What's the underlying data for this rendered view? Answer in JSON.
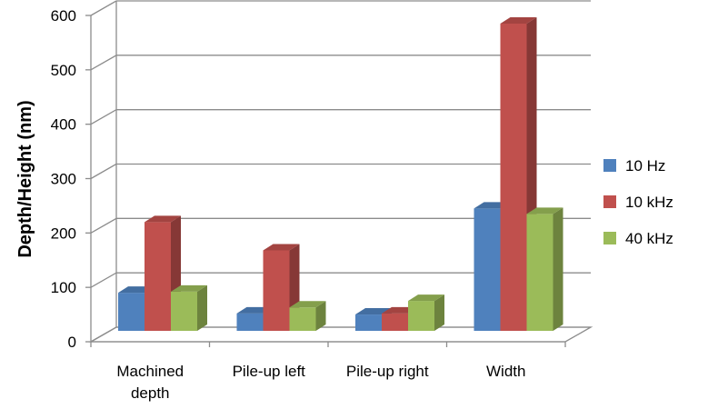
{
  "chart_data": {
    "type": "bar",
    "categories": [
      "Machined depth",
      "Pile-up left",
      "Pile-up right",
      "Width"
    ],
    "category_lines": [
      [
        "Machined",
        "depth"
      ],
      [
        "Pile-up left"
      ],
      [
        "Pile-up right"
      ],
      [
        "Width"
      ]
    ],
    "series": [
      {
        "name": "10 Hz",
        "values": [
          70,
          32,
          30,
          225
        ],
        "color": "#4F81BD"
      },
      {
        "name": "10 kHz",
        "values": [
          200,
          148,
          32,
          565
        ],
        "color": "#C0504D"
      },
      {
        "name": "40 kHz",
        "values": [
          72,
          43,
          55,
          215
        ],
        "color": "#9BBB59"
      }
    ],
    "ylabel": "Depth/Height (nm)",
    "xlabel": "",
    "ylim": [
      0,
      600
    ],
    "yticks": [
      0,
      100,
      200,
      300,
      400,
      500,
      600
    ],
    "grid": true,
    "legend_position": "right",
    "style": "3d-clustered-column"
  }
}
